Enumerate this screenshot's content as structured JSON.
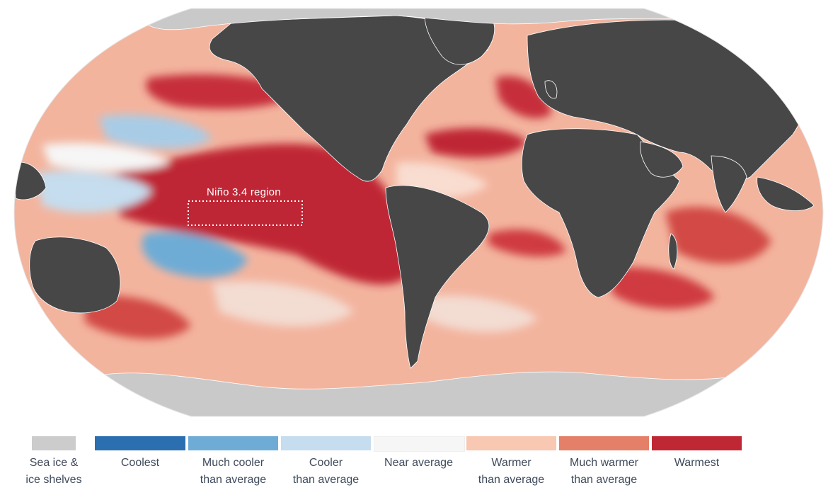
{
  "map": {
    "region_label": "Niño 3.4 region",
    "colors": {
      "land": "#474747",
      "ice": "#c9c9c9",
      "ocean_base": "#f3b49e",
      "border": "#ffffff"
    }
  },
  "legend": {
    "items": [
      {
        "key": "sea-ice",
        "label": "Sea ice &\nice shelves",
        "color": "#cccccc"
      },
      {
        "key": "coolest",
        "label": "Coolest",
        "color": "#2c6fb0"
      },
      {
        "key": "much-cooler",
        "label": "Much cooler\nthan average",
        "color": "#6eacd6"
      },
      {
        "key": "cooler",
        "label": "Cooler\nthan average",
        "color": "#c5ddee"
      },
      {
        "key": "near-average",
        "label": "Near average",
        "color": "#f6f6f6"
      },
      {
        "key": "warmer",
        "label": "Warmer\nthan average",
        "color": "#f8c8b2"
      },
      {
        "key": "much-warmer",
        "label": "Much warmer\nthan average",
        "color": "#e58068"
      },
      {
        "key": "warmest",
        "label": "Warmest",
        "color": "#bf2734"
      }
    ]
  }
}
